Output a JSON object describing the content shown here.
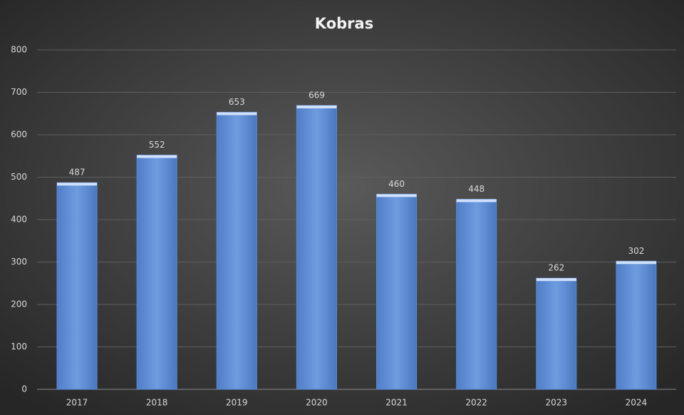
{
  "chart_data": {
    "type": "bar",
    "title": "Kobras",
    "categories": [
      "2017",
      "2018",
      "2019",
      "2020",
      "2021",
      "2022",
      "2023",
      "2024"
    ],
    "values": [
      487,
      552,
      653,
      669,
      460,
      448,
      262,
      302
    ],
    "color": "#5b8ad4",
    "ylim": [
      0,
      800
    ],
    "yticks": [
      0,
      100,
      200,
      300,
      400,
      500,
      600,
      700,
      800
    ],
    "grid": true,
    "data_labels": true
  }
}
